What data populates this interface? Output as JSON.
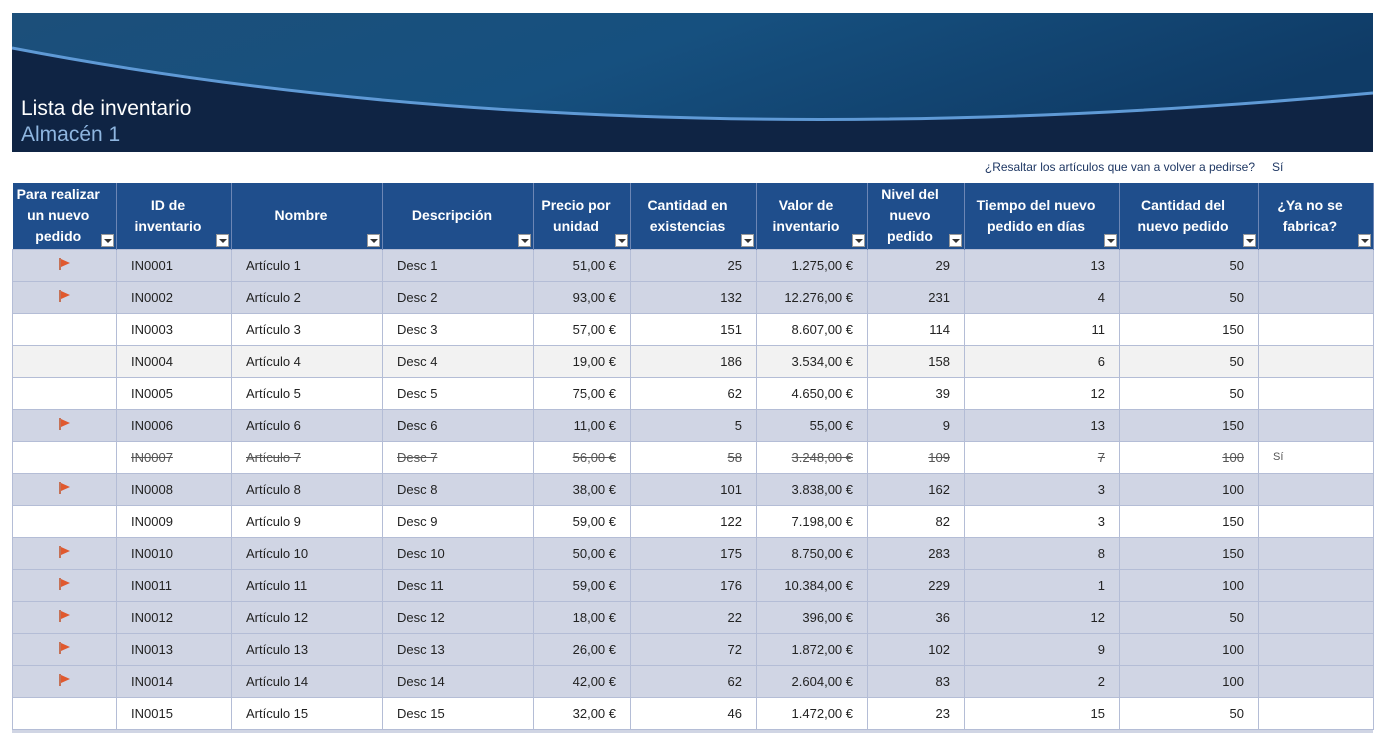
{
  "header": {
    "title": "Lista de inventario",
    "subtitle": "Almacén 1"
  },
  "highlight": {
    "question": "¿Resaltar los artículos que van a volver a pedirse?",
    "answer": "Sí"
  },
  "table": {
    "headers": [
      "Para realizar un nuevo pedido",
      "ID de inventario",
      "Nombre",
      "Descripción",
      "Precio por unidad",
      "Cantidad en existencias",
      "Valor de inventario",
      "Nivel del nuevo pedido",
      "Tiempo del nuevo pedido en días",
      "Cantidad del nuevo pedido",
      "¿Ya no se fabrica?"
    ],
    "rows": [
      {
        "flag": true,
        "cells": [
          "IN0001",
          "Artículo 1",
          "Desc 1",
          "51,00 €",
          "25",
          "1.275,00 €",
          "29",
          "13",
          "50"
        ]
      },
      {
        "flag": true,
        "cells": [
          "IN0002",
          "Artículo 2",
          "Desc 2",
          "93,00 €",
          "132",
          "12.276,00 €",
          "231",
          "4",
          "50"
        ]
      },
      {
        "flag": false,
        "cells": [
          "IN0003",
          "Artículo 3",
          "Desc 3",
          "57,00 €",
          "151",
          "8.607,00 €",
          "114",
          "11",
          "150"
        ]
      },
      {
        "flag": false,
        "cells": [
          "IN0004",
          "Artículo 4",
          "Desc 4",
          "19,00 €",
          "186",
          "3.534,00 €",
          "158",
          "6",
          "50"
        ]
      },
      {
        "flag": false,
        "cells": [
          "IN0005",
          "Artículo 5",
          "Desc 5",
          "75,00 €",
          "62",
          "4.650,00 €",
          "39",
          "12",
          "50"
        ]
      },
      {
        "flag": true,
        "cells": [
          "IN0006",
          "Artículo 6",
          "Desc 6",
          "11,00 €",
          "5",
          "55,00 €",
          "9",
          "13",
          "150"
        ]
      },
      {
        "flag": false,
        "discontinued": "Sí",
        "cells": [
          "IN0007",
          "Artículo 7",
          "Desc 7",
          "56,00 €",
          "58",
          "3.248,00 €",
          "109",
          "7",
          "100"
        ]
      },
      {
        "flag": true,
        "cells": [
          "IN0008",
          "Artículo 8",
          "Desc 8",
          "38,00 €",
          "101",
          "3.838,00 €",
          "162",
          "3",
          "100"
        ]
      },
      {
        "flag": false,
        "cells": [
          "IN0009",
          "Artículo 9",
          "Desc 9",
          "59,00 €",
          "122",
          "7.198,00 €",
          "82",
          "3",
          "150"
        ]
      },
      {
        "flag": true,
        "cells": [
          "IN0010",
          "Artículo 10",
          "Desc 10",
          "50,00 €",
          "175",
          "8.750,00 €",
          "283",
          "8",
          "150"
        ]
      },
      {
        "flag": true,
        "cells": [
          "IN0011",
          "Artículo 11",
          "Desc 11",
          "59,00 €",
          "176",
          "10.384,00 €",
          "229",
          "1",
          "100"
        ]
      },
      {
        "flag": true,
        "cells": [
          "IN0012",
          "Artículo 12",
          "Desc 12",
          "18,00 €",
          "22",
          "396,00 €",
          "36",
          "12",
          "50"
        ]
      },
      {
        "flag": true,
        "cells": [
          "IN0013",
          "Artículo 13",
          "Desc 13",
          "26,00 €",
          "72",
          "1.872,00 €",
          "102",
          "9",
          "100"
        ]
      },
      {
        "flag": true,
        "cells": [
          "IN0014",
          "Artículo 14",
          "Desc 14",
          "42,00 €",
          "62",
          "2.604,00 €",
          "83",
          "2",
          "100"
        ]
      },
      {
        "flag": false,
        "cells": [
          "IN0015",
          "Artículo 15",
          "Desc 15",
          "32,00 €",
          "46",
          "1.472,00 €",
          "23",
          "15",
          "50"
        ]
      }
    ]
  }
}
